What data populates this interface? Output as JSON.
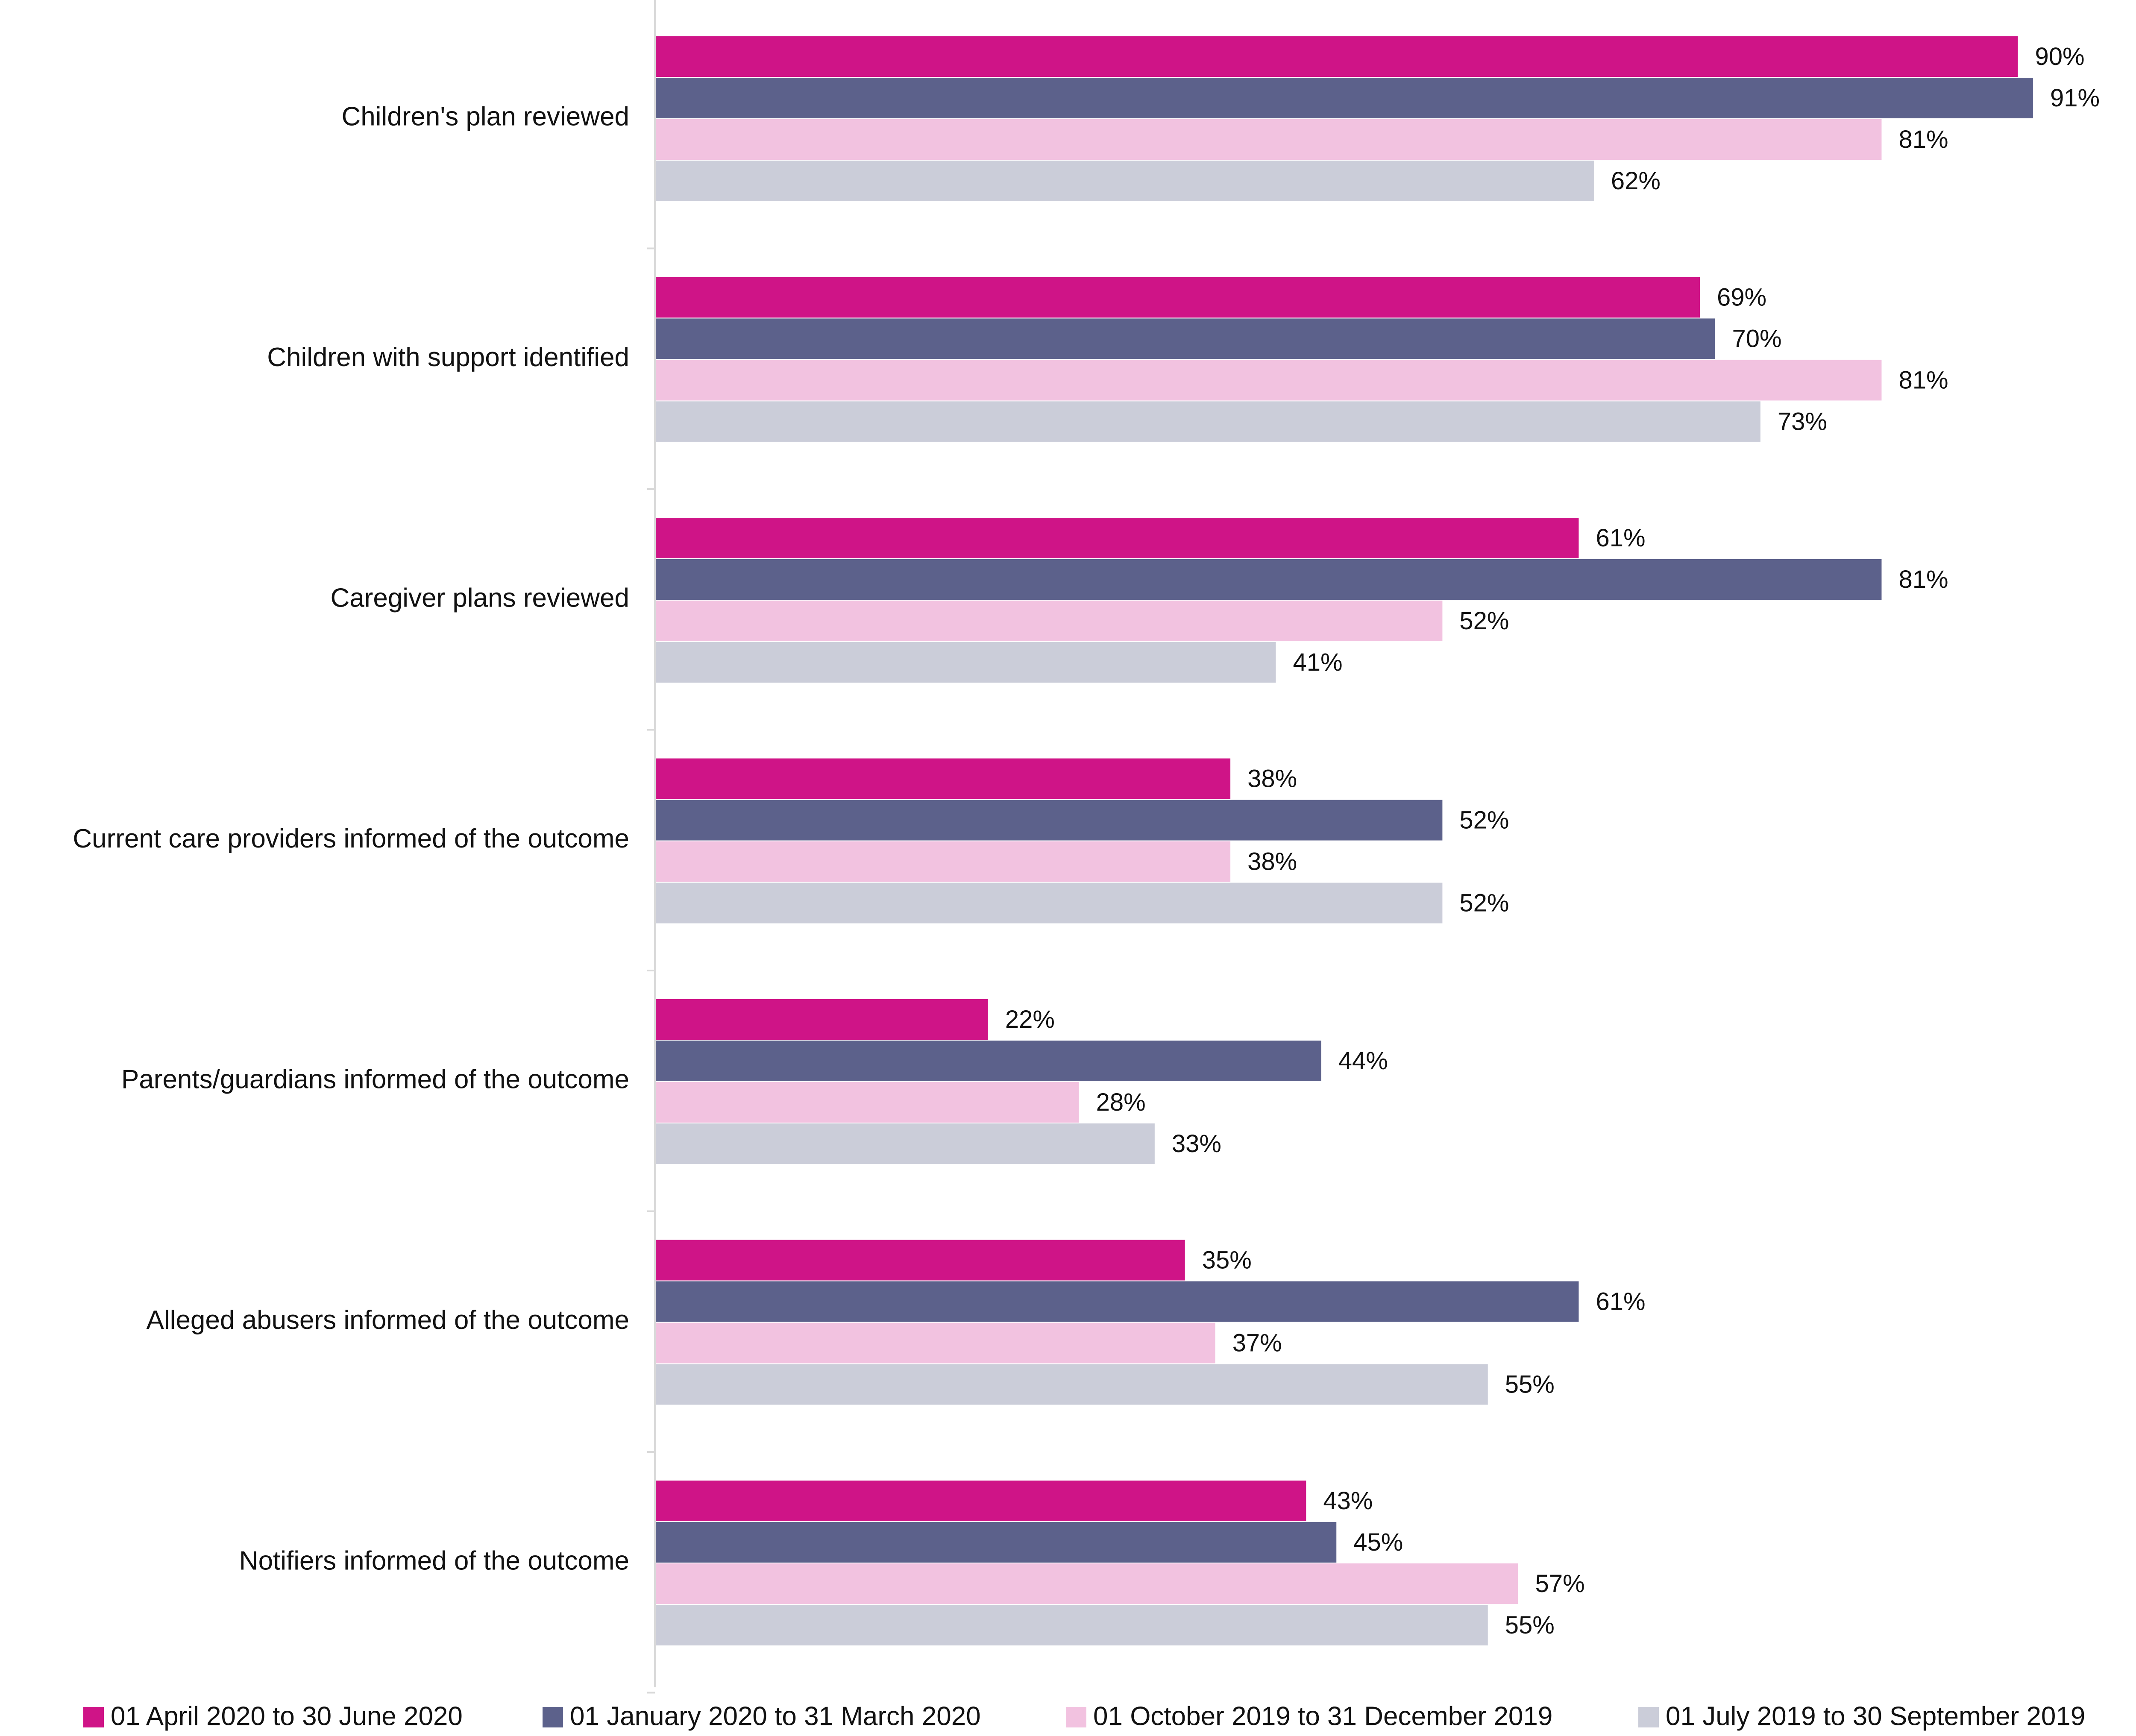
{
  "chart_data": {
    "type": "bar",
    "orientation": "horizontal",
    "title": "",
    "xlabel": "",
    "ylabel": "",
    "xlim": [
      0,
      100
    ],
    "grid": false,
    "legend_position": "bottom",
    "value_suffix": "%",
    "categories": [
      "Children's plan reviewed",
      "Children with support identified",
      "Caregiver plans reviewed",
      "Current care providers informed of the outcome",
      "Parents/guardians informed of the outcome",
      "Alleged abusers informed of the outcome",
      "Notifiers informed of the outcome"
    ],
    "series": [
      {
        "name": "01 April 2020 to 30 June 2020",
        "color": "#CF1487",
        "values": [
          90,
          69,
          61,
          38,
          22,
          35,
          43
        ]
      },
      {
        "name": "01 January 2020 to 31 March 2020",
        "color": "#5C618B",
        "values": [
          91,
          70,
          81,
          52,
          44,
          61,
          45
        ]
      },
      {
        "name": "01 October 2019 to 31 December 2019",
        "color": "#F2C2E0",
        "values": [
          81,
          81,
          52,
          38,
          28,
          37,
          57
        ]
      },
      {
        "name": "01 July 2019 to 30 September 2019",
        "color": "#CBCDD9",
        "values": [
          62,
          73,
          41,
          52,
          33,
          55,
          55
        ]
      }
    ]
  }
}
